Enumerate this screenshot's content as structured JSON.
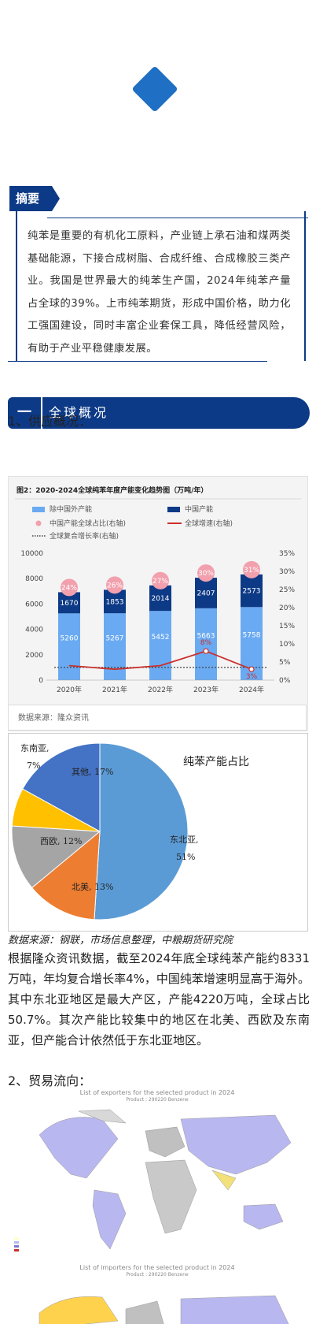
{
  "abstract": {
    "tag": "摘要",
    "text": "纯苯是重要的有机化工原料，产业链上承石油和煤两类基础能源，下接合成树脂、合成纤维、合成橡胶三类产业。我国是世界最大的纯苯生产国，2024年纯苯产量占全球的39%。上市纯苯期货，形成中国价格，助力化工强国建设，同时丰富企业套保工具，降低经营风险，有助于产业平稳健康发展。"
  },
  "section1": {
    "num": "一",
    "title": "全球概况"
  },
  "supply_heading": "1、供应概况：",
  "bar_chart_source": "数据来源：隆众资讯",
  "pie_source_note": "数据来源：钢联，市场信息整理，中粮期货研究院",
  "body_paragraph": "根据隆众资讯数据，截至2024年底全球纯苯产能约8331万吨，年均复合增长率4%，中国纯苯增速明显高于海外。其中东北亚地区是最大产区，产能4220万吨，全球占比50.7%。其次产能比较集中的地区在北美、西欧及东南亚，但产能合计依然低于东北亚地区。",
  "trade_heading": "2、贸易流向：",
  "map1_title": "List of exporters for the selected product in 2024",
  "map1_sub": "Product : 290220 Benzene",
  "map2_title": "List of importers for the selected product in 2024",
  "map2_sub": "Product : 290220 Benzene",
  "colors": {
    "navy": "#0d3a86",
    "blue": "#1f6fc4"
  },
  "chart_data": [
    {
      "type": "bar",
      "title": "图2：2020-2024全球纯苯年度产能变化趋势图（万吨/年）",
      "categories": [
        "2020年",
        "2021年",
        "2022年",
        "2023年",
        "2024年"
      ],
      "series": [
        {
          "name": "除中国外产能",
          "values": [
            5260,
            5267,
            5452,
            5663,
            5758
          ],
          "color": "#6aaaf2"
        },
        {
          "name": "中国产能",
          "values": [
            1670,
            1853,
            2014,
            2407,
            2573
          ],
          "color": "#0d3a86"
        },
        {
          "name": "中国产能全球占比(右轴)",
          "values": [
            24,
            26,
            27,
            30,
            31
          ],
          "color": "#f2a0ad"
        },
        {
          "name": "全球增速(右轴)",
          "values": [
            4,
            3,
            4,
            8,
            3
          ],
          "color": "#c9302c"
        },
        {
          "name": "全球复合增长率(右轴)",
          "values": [
            3.5,
            3.5,
            3.5,
            3.5,
            3.5
          ],
          "color": "#444444"
        }
      ],
      "labels_growth": [
        "",
        "",
        "",
        "8%",
        "3%"
      ],
      "y_ticks": [
        "0",
        "2000",
        "4000",
        "6000",
        "8000",
        "10000"
      ],
      "y2_ticks": [
        "0%",
        "5%",
        "10%",
        "15%",
        "20%",
        "25%",
        "30%",
        "35%"
      ],
      "ylim": [
        0,
        10000
      ],
      "y2lim": [
        0,
        35
      ]
    },
    {
      "type": "pie",
      "title": "纯苯产能占比",
      "slices": [
        {
          "label": "东北亚,",
          "pct": "51%",
          "value": 51,
          "color": "#5b9bd5"
        },
        {
          "label": "北美,",
          "pct": "13%",
          "value": 13,
          "color": "#ed7d31"
        },
        {
          "label": "西欧,",
          "pct": "12%",
          "value": 12,
          "color": "#a5a5a5"
        },
        {
          "label": "东南亚,",
          "pct": "7%",
          "value": 7,
          "color": "#ffc000"
        },
        {
          "label": "其他,",
          "pct": "17%",
          "value": 17,
          "color": "#4472c4"
        }
      ]
    }
  ]
}
